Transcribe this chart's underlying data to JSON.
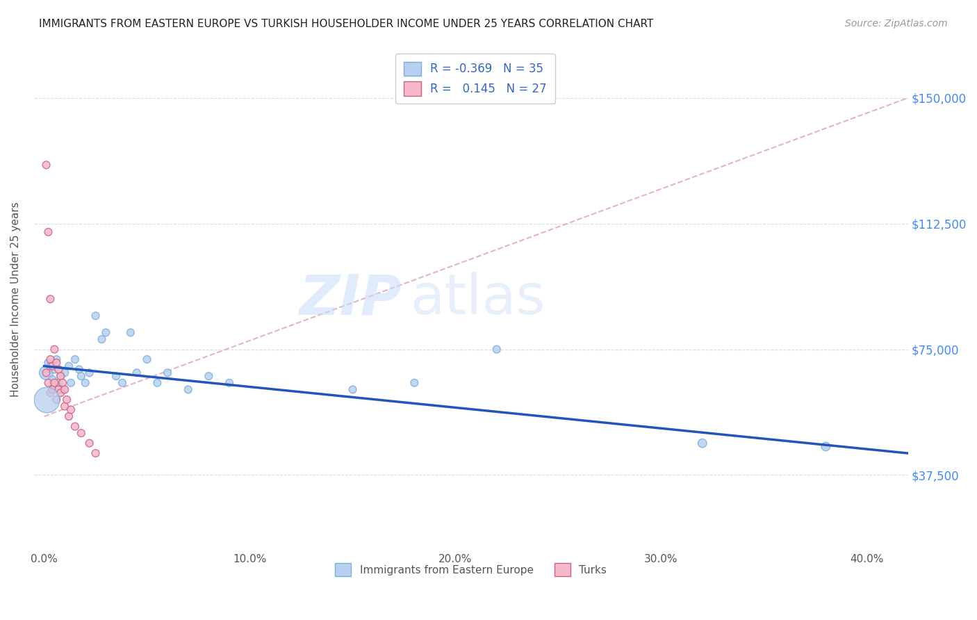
{
  "title": "IMMIGRANTS FROM EASTERN EUROPE VS TURKISH HOUSEHOLDER INCOME UNDER 25 YEARS CORRELATION CHART",
  "source": "Source: ZipAtlas.com",
  "ylabel": "Householder Income Under 25 years",
  "xlabel_ticks": [
    "0.0%",
    "10.0%",
    "20.0%",
    "30.0%",
    "40.0%"
  ],
  "xlabel_tick_vals": [
    0.0,
    0.1,
    0.2,
    0.3,
    0.4
  ],
  "ylabel_ticks": [
    "$37,500",
    "$75,000",
    "$112,500",
    "$150,000"
  ],
  "ylabel_tick_vals": [
    37500,
    75000,
    112500,
    150000
  ],
  "ylim": [
    15000,
    165000
  ],
  "xlim": [
    -0.005,
    0.42
  ],
  "watermark_1": "ZIP",
  "watermark_2": "atlas",
  "eastern_europe": {
    "x": [
      0.001,
      0.002,
      0.003,
      0.004,
      0.005,
      0.006,
      0.007,
      0.008,
      0.009,
      0.01,
      0.012,
      0.013,
      0.015,
      0.017,
      0.018,
      0.02,
      0.022,
      0.025,
      0.028,
      0.03,
      0.035,
      0.038,
      0.042,
      0.045,
      0.05,
      0.055,
      0.06,
      0.07,
      0.08,
      0.09,
      0.15,
      0.18,
      0.22,
      0.32,
      0.38
    ],
    "y": [
      68000,
      71000,
      70000,
      66000,
      69000,
      72000,
      65000,
      67000,
      63000,
      68000,
      70000,
      65000,
      72000,
      69000,
      67000,
      65000,
      68000,
      85000,
      78000,
      80000,
      67000,
      65000,
      80000,
      68000,
      72000,
      65000,
      68000,
      63000,
      67000,
      65000,
      63000,
      65000,
      75000,
      47000,
      46000
    ],
    "sizes": [
      200,
      60,
      60,
      60,
      60,
      60,
      60,
      60,
      60,
      60,
      60,
      60,
      60,
      60,
      60,
      60,
      60,
      60,
      60,
      60,
      60,
      60,
      60,
      60,
      60,
      60,
      60,
      60,
      60,
      60,
      60,
      60,
      60,
      80,
      80
    ],
    "color": "#b8d0f0",
    "edge_color": "#7baee0",
    "R": -0.369,
    "N": 35,
    "line_color": "#2255bb",
    "line_style": "-"
  },
  "turks": {
    "x": [
      0.001,
      0.001,
      0.002,
      0.002,
      0.003,
      0.003,
      0.003,
      0.004,
      0.004,
      0.005,
      0.005,
      0.006,
      0.006,
      0.007,
      0.007,
      0.008,
      0.008,
      0.009,
      0.01,
      0.01,
      0.011,
      0.012,
      0.013,
      0.015,
      0.018,
      0.022,
      0.025
    ],
    "y": [
      130000,
      68000,
      110000,
      65000,
      90000,
      72000,
      62000,
      70000,
      63000,
      75000,
      65000,
      71000,
      60000,
      69000,
      63000,
      67000,
      62000,
      65000,
      63000,
      58000,
      60000,
      55000,
      57000,
      52000,
      50000,
      47000,
      44000
    ],
    "sizes": [
      60,
      60,
      60,
      60,
      60,
      60,
      60,
      60,
      60,
      60,
      60,
      60,
      60,
      60,
      60,
      60,
      60,
      60,
      60,
      60,
      60,
      60,
      60,
      60,
      60,
      60,
      60
    ],
    "color": "#f4b8c8",
    "edge_color": "#d06080",
    "R": 0.145,
    "N": 27,
    "line_color": "#cc4466",
    "line_style": "--"
  },
  "title_color": "#222222",
  "source_color": "#999999",
  "axis_label_color": "#555555",
  "tick_color_y_right": "#4488ff",
  "tick_color_x": "#555555",
  "grid_color": "#dddddd",
  "bg_color": "#ffffff",
  "legend_label_color": "#3366cc",
  "bottom_legend": [
    {
      "label": "Immigrants from Eastern Europe",
      "color": "#b8d0f0",
      "edge_color": "#7baee0"
    },
    {
      "label": "Turks",
      "color": "#f4b8c8",
      "edge_color": "#d06080"
    }
  ]
}
